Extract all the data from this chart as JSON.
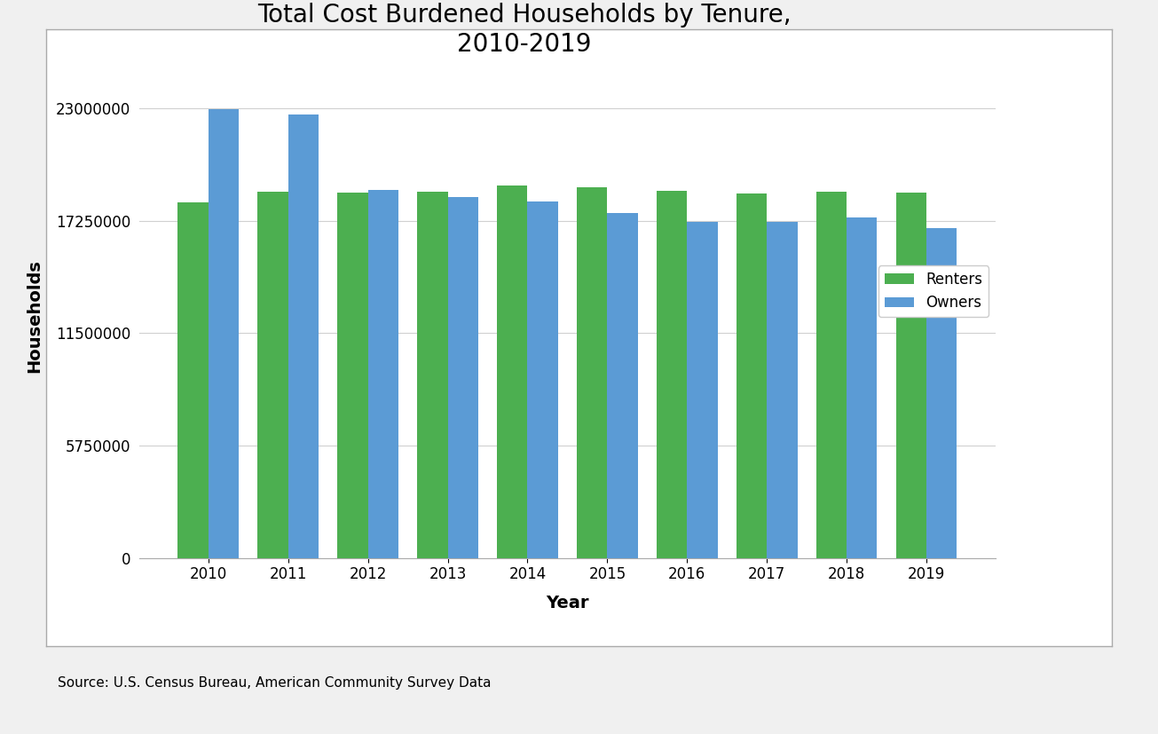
{
  "title": "Total Cost Burdened Households by Tenure,\n2010-2019",
  "xlabel": "Year",
  "ylabel": "Households",
  "years": [
    2010,
    2011,
    2012,
    2013,
    2014,
    2015,
    2016,
    2017,
    2018,
    2019
  ],
  "renters": [
    18200000,
    18750000,
    18700000,
    18750000,
    19050000,
    18950000,
    18800000,
    18650000,
    18750000,
    18700000
  ],
  "owners": [
    22950000,
    22700000,
    18850000,
    18450000,
    18250000,
    17650000,
    17200000,
    17200000,
    17420000,
    16900000
  ],
  "renter_color": "#4CAF50",
  "owner_color": "#5B9BD5",
  "outer_bg_color": "#f0f0f0",
  "inner_bg_color": "#ffffff",
  "grid_color": "#d0d0d0",
  "yticks": [
    0,
    5750000,
    11500000,
    17250000,
    23000000
  ],
  "ylim": [
    0,
    24800000
  ],
  "title_fontsize": 20,
  "axis_label_fontsize": 14,
  "tick_fontsize": 12,
  "legend_labels": [
    "Renters",
    "Owners"
  ],
  "source_text": "Source: U.S. Census Bureau, American Community Survey Data",
  "bar_width": 0.38
}
